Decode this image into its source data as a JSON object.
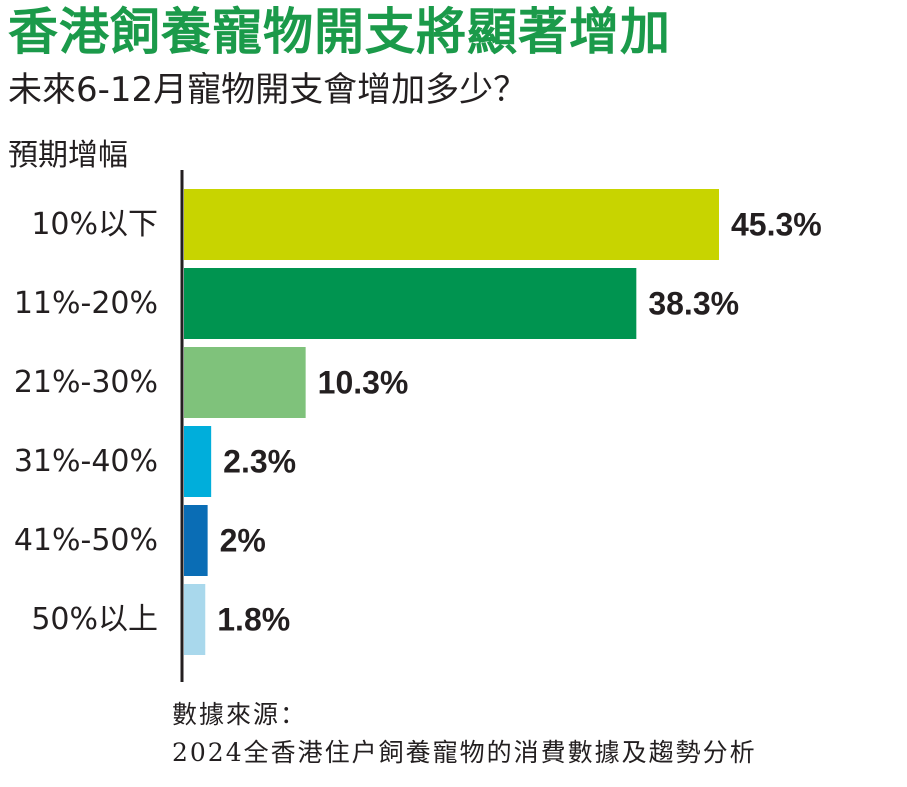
{
  "chart_data": {
    "type": "bar",
    "orientation": "horizontal",
    "title": "香港飼養寵物開支將顯著增加",
    "subtitle": "未來6-12月寵物開支會增加多少？",
    "ylabel": "預期增幅",
    "categories": [
      "10%以下",
      "11%-20%",
      "21%-30%",
      "31%-40%",
      "41%-50%",
      "50%以上"
    ],
    "values": [
      45.3,
      38.3,
      10.3,
      2.3,
      2,
      1.8
    ],
    "value_labels": [
      "45.3%",
      "38.3%",
      "10.3%",
      "2.3%",
      "2%",
      "1.8%"
    ],
    "colors": [
      "#c8d400",
      "#009450",
      "#7fc27b",
      "#00aedb",
      "#0a6db5",
      "#a9d8ec"
    ],
    "xlim": [
      0,
      45.3
    ],
    "grid": false,
    "legend": "none"
  },
  "source": {
    "label": "數據來源：",
    "text": "2024全香港住户飼養寵物的消費數據及趨勢分析"
  }
}
